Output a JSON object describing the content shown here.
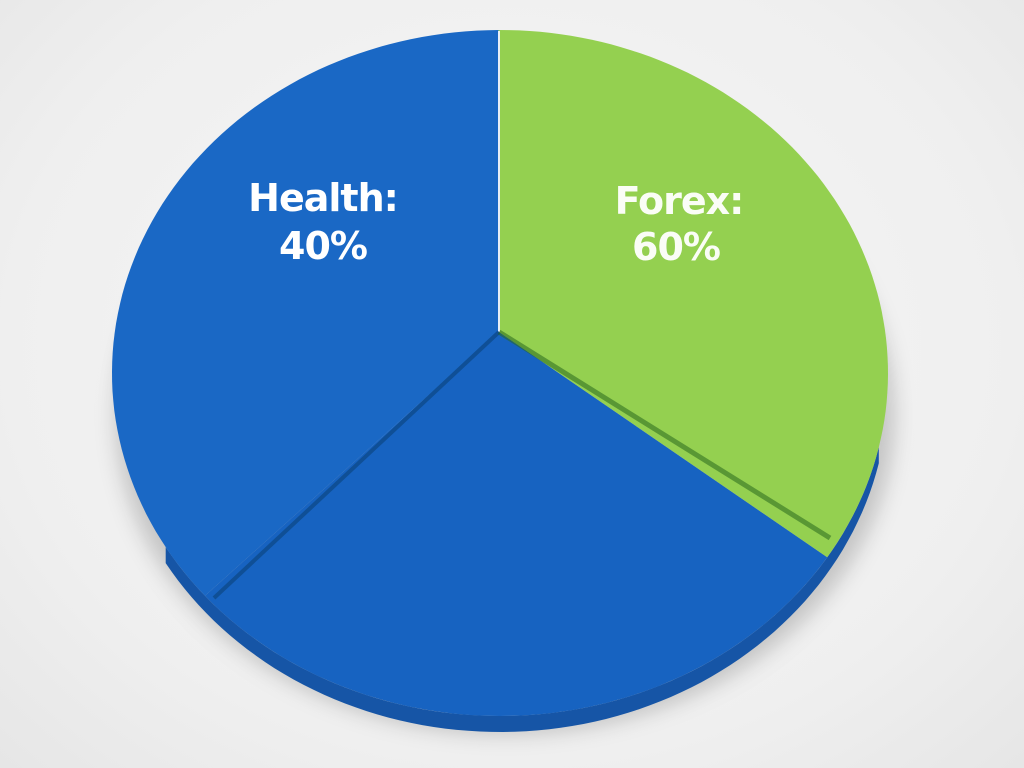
{
  "chart_data": {
    "type": "pie",
    "title": "",
    "slices": [
      {
        "name": "Health",
        "label": "Health:",
        "percent_label": "40%",
        "value": 40,
        "color": "#1a68c5"
      },
      {
        "name": "Forex",
        "label": "Forex:",
        "percent_label": "60%",
        "value": 60,
        "color": "#94d050"
      }
    ],
    "depth_color": "#1655a6",
    "legend": "none",
    "style": "3d-pie"
  }
}
